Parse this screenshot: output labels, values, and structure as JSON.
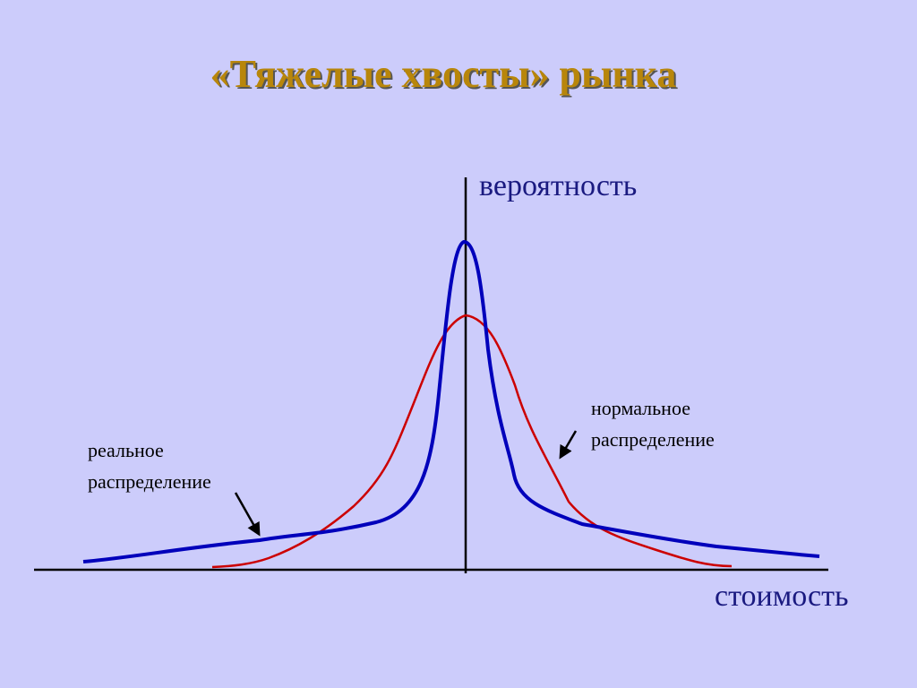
{
  "header": {
    "title": "«Тяжелые хвосты» рынка"
  },
  "axes": {
    "y_label": "вероятность",
    "x_label": "стоимость"
  },
  "annotations": [
    {
      "lines": [
        "реальное",
        "распределение"
      ]
    },
    {
      "lines": [
        "нормальное",
        "распределение"
      ]
    }
  ]
}
